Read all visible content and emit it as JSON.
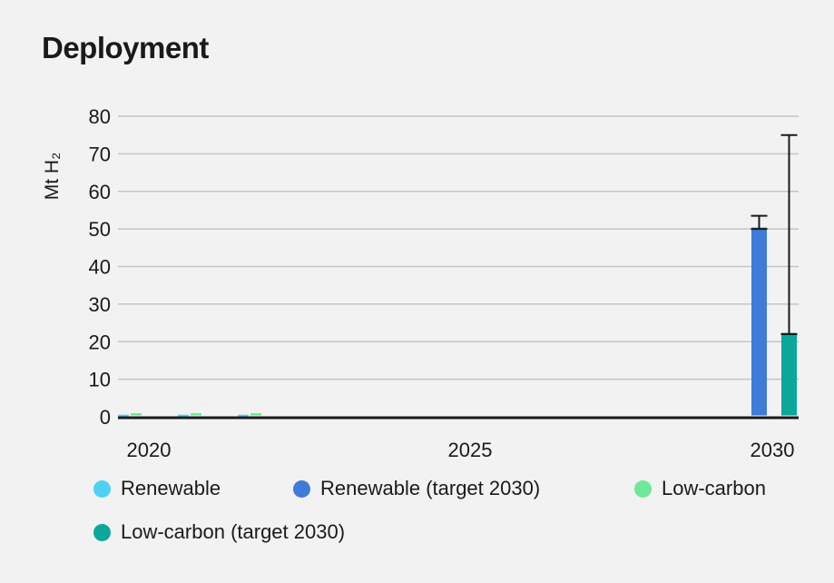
{
  "colors": {
    "renewable": "#4dd2f5",
    "renewable_target": "#3f7bd8",
    "low_carbon": "#6fe89a",
    "low_carbon_target": "#0aa89a",
    "grid": "#c4c4c4",
    "axis": "#1a1a1a",
    "background": "#f2f2f2"
  },
  "chart_data": {
    "type": "bar",
    "title": "Deployment",
    "ylabel": "Mt H₂",
    "xlabel": "",
    "ylim": [
      0,
      80
    ],
    "yticks": [
      0,
      10,
      20,
      30,
      40,
      50,
      60,
      70,
      80
    ],
    "xlim": [
      2020,
      2030
    ],
    "xticks": [
      "2020",
      "2025",
      "2030"
    ],
    "grid": true,
    "legend_position": "bottom",
    "series": [
      {
        "name": "Renewable",
        "color_key": "renewable",
        "points": [
          {
            "x": 2020,
            "y": 0.2
          },
          {
            "x": 2021,
            "y": 0.2
          },
          {
            "x": 2022,
            "y": 0.2
          }
        ]
      },
      {
        "name": "Low-carbon",
        "color_key": "low_carbon",
        "points": [
          {
            "x": 2020,
            "y": 0.6
          },
          {
            "x": 2021,
            "y": 0.6
          },
          {
            "x": 2022,
            "y": 0.6
          }
        ]
      },
      {
        "name": "Renewable (target 2030)",
        "color_key": "renewable_target",
        "points": [
          {
            "x": 2030,
            "y": 50,
            "error_high": 53.5
          }
        ]
      },
      {
        "name": "Low-carbon (target 2030)",
        "color_key": "low_carbon_target",
        "points": [
          {
            "x": 2030,
            "y": 22,
            "error_high": 75
          }
        ]
      }
    ]
  },
  "legend": [
    {
      "label": "Renewable",
      "color_key": "renewable"
    },
    {
      "label": "Renewable (target 2030)",
      "color_key": "renewable_target"
    },
    {
      "label": "Low-carbon",
      "color_key": "low_carbon"
    },
    {
      "label": "Low-carbon (target 2030)",
      "color_key": "low_carbon_target"
    }
  ]
}
